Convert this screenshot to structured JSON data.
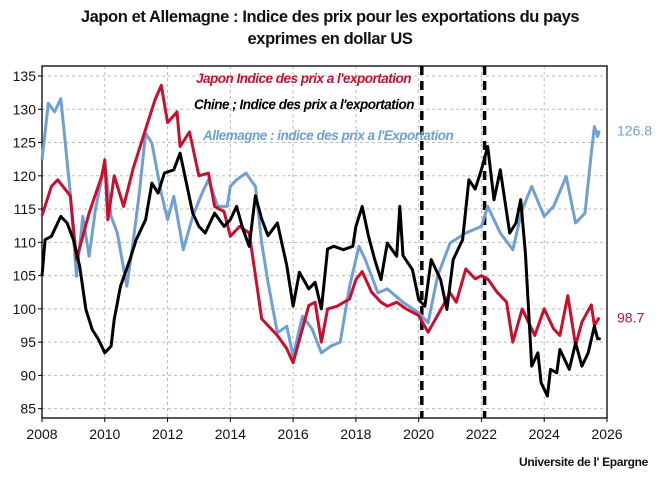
{
  "chart_data": {
    "type": "line",
    "title": [
      "Japon et Allemagne : Indice des prix pour les exportations du pays",
      "exprimes en dollar US"
    ],
    "xlabel": "",
    "ylabel": "",
    "xlim": [
      2008,
      2026
    ],
    "ylim": [
      83.6,
      136.5
    ],
    "xticks": [
      2008,
      2010,
      2012,
      2014,
      2016,
      2018,
      2020,
      2022,
      2024,
      2026
    ],
    "yticks": [
      85,
      90,
      95,
      100,
      105,
      110,
      115,
      120,
      125,
      130,
      135
    ],
    "grid": true,
    "legend_position": "top-center",
    "vlines": [
      2020.1,
      2022.1
    ],
    "series": [
      {
        "name": "Japon Indice des prix a l'exportation",
        "color": "#c8102e",
        "end_label": "98.7",
        "x": [
          2008,
          2008.3,
          2008.5,
          2008.9,
          2009.1,
          2009.5,
          2009.9,
          2010.0,
          2010.1,
          2010.3,
          2010.6,
          2010.9,
          2011.3,
          2011.6,
          2011.8,
          2012.0,
          2012.3,
          2012.4,
          2012.7,
          2013.0,
          2013.3,
          2013.5,
          2013.8,
          2014.0,
          2014.3,
          2014.6,
          2014.85,
          2015.0,
          2015.5,
          2015.8,
          2016.0,
          2016.5,
          2016.7,
          2016.9,
          2017.1,
          2017.4,
          2017.8,
          2018.0,
          2018.2,
          2018.5,
          2018.8,
          2019.0,
          2019.3,
          2019.6,
          2020.0,
          2020.3,
          2020.6,
          2021.0,
          2021.2,
          2021.5,
          2021.8,
          2022.0,
          2022.2,
          2022.5,
          2022.8,
          2023.0,
          2023.3,
          2023.5,
          2023.7,
          2024.0,
          2024.3,
          2024.5,
          2024.75,
          2025.0,
          2025.2,
          2025.5,
          2025.6,
          2025.75
        ],
        "y": [
          114,
          118.4,
          119.4,
          117,
          107.4,
          114.4,
          119.9,
          122.4,
          113.4,
          120,
          115.4,
          121,
          127,
          131.4,
          133.6,
          128,
          129.6,
          124.4,
          126.6,
          120,
          120.4,
          115.4,
          114.6,
          110.9,
          112.4,
          111.4,
          103.4,
          98.5,
          96,
          94,
          91.9,
          100.5,
          101,
          95,
          100,
          100.4,
          101.5,
          104.4,
          105.6,
          102.5,
          101,
          100.4,
          101,
          100,
          99,
          96.5,
          99,
          102.4,
          101,
          106,
          104.5,
          105,
          104.5,
          102.5,
          101,
          95,
          100,
          98,
          96,
          100,
          97,
          96,
          102,
          94.5,
          98,
          100.6,
          97.5,
          98.7
        ]
      },
      {
        "name": "Chine ; Indice des prix a l'exportation",
        "color": "#000000",
        "x": [
          2008,
          2008.1,
          2008.3,
          2008.6,
          2008.8,
          2009.0,
          2009.2,
          2009.4,
          2009.6,
          2009.8,
          2010.0,
          2010.2,
          2010.3,
          2010.5,
          2010.8,
          2011.0,
          2011.3,
          2011.5,
          2011.7,
          2011.9,
          2012.2,
          2012.4,
          2012.6,
          2012.8,
          2013.0,
          2013.2,
          2013.5,
          2013.8,
          2014.0,
          2014.2,
          2014.4,
          2014.6,
          2014.8,
          2015.0,
          2015.2,
          2015.5,
          2015.8,
          2016.0,
          2016.2,
          2016.5,
          2016.7,
          2016.9,
          2017.1,
          2017.3,
          2017.6,
          2017.9,
          2018.0,
          2018.2,
          2018.4,
          2018.6,
          2018.8,
          2019.0,
          2019.3,
          2019.4,
          2019.5,
          2019.8,
          2020.0,
          2020.2,
          2020.4,
          2020.7,
          2020.9,
          2021.1,
          2021.4,
          2021.6,
          2021.8,
          2022.0,
          2022.2,
          2022.4,
          2022.6,
          2022.9,
          2023.1,
          2023.25,
          2023.4,
          2023.6,
          2023.8,
          2023.9,
          2024.1,
          2024.2,
          2024.4,
          2024.5,
          2024.8,
          2025.0,
          2025.2,
          2025.4,
          2025.6,
          2025.7,
          2025.8
        ],
        "y": [
          104.9,
          110.4,
          110.9,
          113.9,
          112.9,
          110.4,
          106.4,
          99.9,
          96.9,
          95.4,
          93.4,
          94.4,
          98.4,
          103.4,
          107.4,
          110.4,
          113.4,
          118.9,
          117.4,
          120.4,
          120.9,
          123.4,
          118.9,
          114.4,
          112.4,
          111.4,
          114.4,
          112.4,
          113.4,
          115.4,
          112,
          109.4,
          117,
          113.5,
          111,
          112.9,
          106.5,
          100.4,
          105.5,
          103,
          104,
          100,
          109,
          109.4,
          108.9,
          109.4,
          112.4,
          115.4,
          111,
          107.4,
          104.4,
          109.9,
          107.9,
          115.4,
          108,
          105.9,
          101.4,
          100.4,
          107.4,
          104.4,
          99.9,
          107.4,
          110.4,
          119.4,
          118,
          120.9,
          124.4,
          116.4,
          120.9,
          111.4,
          112.9,
          116.4,
          108.4,
          91.4,
          93.4,
          88.9,
          86.9,
          90.9,
          90.4,
          93.9,
          90.9,
          94.9,
          91.4,
          93.4,
          97.4,
          95.5,
          95.5
        ]
      },
      {
        "name": "Allemagne : indice des prix a l'Exportation",
        "color": "#6f9fd3",
        "end_label": "126.8",
        "x": [
          2008,
          2008.2,
          2008.4,
          2008.6,
          2008.9,
          2009.1,
          2009.3,
          2009.5,
          2009.7,
          2010.0,
          2010.2,
          2010.4,
          2010.7,
          2010.9,
          2011.1,
          2011.3,
          2011.5,
          2011.8,
          2012.0,
          2012.2,
          2012.5,
          2012.8,
          2013.1,
          2013.3,
          2013.6,
          2013.9,
          2014.0,
          2014.2,
          2014.5,
          2014.8,
          2015.0,
          2015.2,
          2015.5,
          2015.8,
          2016.0,
          2016.3,
          2016.6,
          2016.9,
          2017.2,
          2017.5,
          2017.8,
          2018.1,
          2018.3,
          2018.7,
          2019.0,
          2019.5,
          2020.0,
          2020.3,
          2020.6,
          2021.0,
          2021.5,
          2022.0,
          2022.2,
          2022.6,
          2023.0,
          2023.3,
          2023.6,
          2024.0,
          2024.3,
          2024.7,
          2025.0,
          2025.3,
          2025.5,
          2025.6,
          2025.7,
          2025.75
        ],
        "y": [
          122.4,
          130.9,
          129.6,
          131.6,
          117.4,
          104.9,
          113.9,
          107.9,
          114.9,
          121.9,
          113.9,
          111.4,
          103.4,
          109.9,
          117.4,
          126.4,
          124.9,
          117.4,
          113.4,
          116.9,
          108.9,
          113.9,
          117.4,
          119.4,
          115.4,
          115.4,
          118.4,
          119.4,
          120.4,
          118.4,
          109.9,
          104,
          96.4,
          97.4,
          92.9,
          98.9,
          97,
          93.4,
          94.4,
          95,
          103.4,
          109.4,
          107.4,
          102.4,
          103,
          101,
          99.4,
          97.9,
          104.9,
          109.9,
          111.4,
          112.4,
          115.4,
          111.4,
          108.9,
          114.9,
          118.4,
          113.9,
          115.4,
          119.9,
          112.9,
          114.4,
          123.4,
          127.4,
          125.9,
          126.8
        ]
      }
    ]
  },
  "source": "Universite de l' Epargne"
}
